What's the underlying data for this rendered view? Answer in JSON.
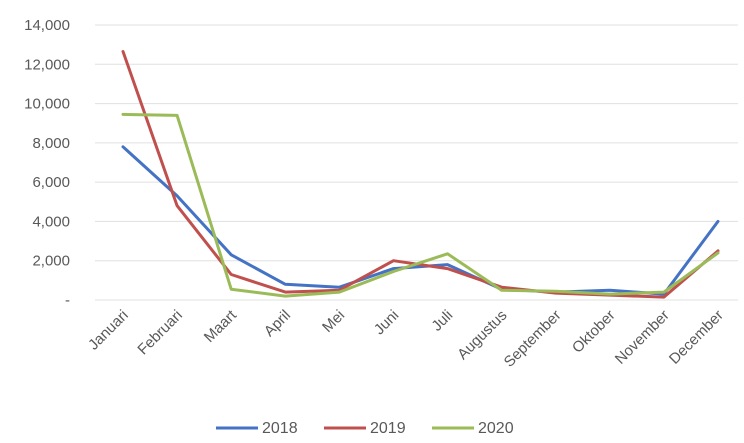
{
  "chart_data": {
    "type": "line",
    "title": "",
    "xlabel": "",
    "ylabel": "",
    "categories": [
      "Januari",
      "Februari",
      "Maart",
      "April",
      "Mei",
      "Juni",
      "Juli",
      "Augustus",
      "September",
      "Oktober",
      "November",
      "December"
    ],
    "y_tick_labels": [
      "-",
      "2,000",
      "4,000",
      "6,000",
      "8,000",
      "10,000",
      "12,000",
      "14,000"
    ],
    "y_tick_values": [
      0,
      2000,
      4000,
      6000,
      8000,
      10000,
      12000,
      14000
    ],
    "ylim": [
      0,
      14000
    ],
    "grid": true,
    "legend_position": "bottom",
    "series": [
      {
        "name": "2018",
        "color": "#4472C4",
        "values": [
          7800,
          5300,
          2300,
          800,
          650,
          1600,
          1800,
          550,
          400,
          500,
          300,
          4000
        ]
      },
      {
        "name": "2019",
        "color": "#C0504D",
        "values": [
          12650,
          4800,
          1300,
          400,
          500,
          2000,
          1600,
          650,
          350,
          250,
          150,
          2500
        ]
      },
      {
        "name": "2020",
        "color": "#9BBB59",
        "values": [
          9450,
          9400,
          550,
          200,
          400,
          1450,
          2350,
          500,
          450,
          300,
          400,
          2400
        ]
      }
    ]
  }
}
